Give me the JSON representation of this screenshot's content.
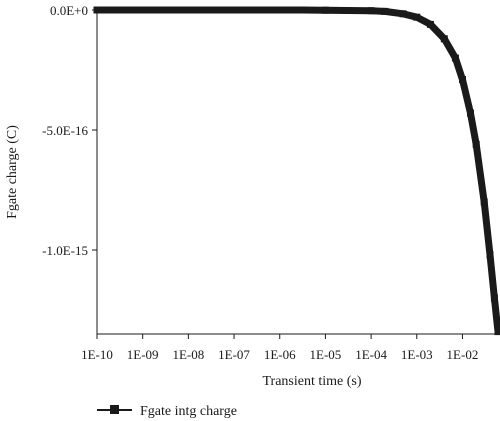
{
  "chart_data": {
    "type": "scatter",
    "title": "",
    "xlabel": "Transient time (s)",
    "ylabel": "Fgate charge (C)",
    "x_scale": "log",
    "xlim": [
      1e-10,
      0.06
    ],
    "ylim": [
      -1.35e-15,
      0
    ],
    "x_ticks": [
      1e-10,
      1e-09,
      1e-08,
      1e-07,
      1e-06,
      1e-05,
      0.0001,
      0.001,
      0.01
    ],
    "x_tick_labels": [
      "1E-10",
      "1E-09",
      "1E-08",
      "1E-07",
      "1E-06",
      "1E-05",
      "1E-04",
      "1E-03",
      "1E-02"
    ],
    "y_ticks": [
      0,
      -5e-16,
      -1e-15
    ],
    "y_tick_labels": [
      "0.0E+0",
      "-5.0E-16",
      "-1.0E-15"
    ],
    "grid": false,
    "legend_position": "bottom-left",
    "series": [
      {
        "name": "Fgate intg charge",
        "color": "#1a1a1a",
        "marker": "square",
        "x": [
          1e-10,
          3e-10,
          1e-09,
          3e-09,
          1e-08,
          3e-08,
          1e-07,
          3e-07,
          1e-06,
          3e-06,
          1e-05,
          3e-05,
          0.0001,
          0.0002,
          0.0005,
          0.001,
          0.002,
          0.004,
          0.007,
          0.01,
          0.015,
          0.02,
          0.03,
          0.04,
          0.05,
          0.06
        ],
        "y": [
          0,
          0,
          0,
          0,
          0,
          0,
          0,
          0,
          0,
          0,
          -1e-18,
          -2e-18,
          -3e-18,
          -6e-18,
          -1.6e-17,
          -3e-17,
          -6e-17,
          -1.2e-16,
          -2e-16,
          -2.9e-16,
          -4.3e-16,
          -5.6e-16,
          -8e-16,
          -1.02e-15,
          -1.2e-15,
          -1.34e-15
        ]
      }
    ]
  }
}
